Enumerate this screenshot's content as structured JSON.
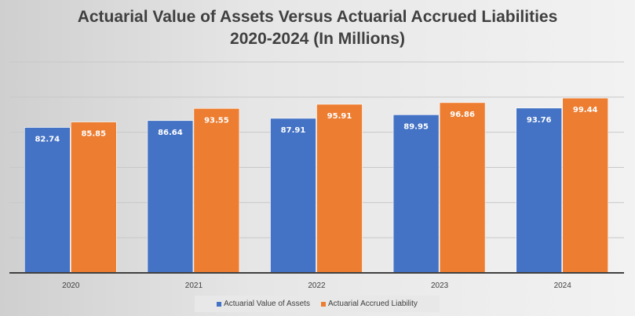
{
  "chart_data": {
    "type": "bar",
    "title": "Actuarial Value of Assets Versus Actuarial Accrued Liabilities",
    "subtitle": "2020-2024 (In Millions)",
    "xlabel": "",
    "ylabel": "",
    "categories": [
      "2020",
      "2021",
      "2022",
      "2023",
      "2024"
    ],
    "series": [
      {
        "name": "Actuarial Value of Assets",
        "color": "#4472c4",
        "values": [
          82.74,
          86.64,
          87.91,
          89.95,
          93.76
        ]
      },
      {
        "name": "Actuarial Accrued Liability",
        "color": "#ed7d31",
        "values": [
          85.85,
          93.55,
          95.91,
          96.86,
          99.44
        ]
      }
    ],
    "ylim": [
      0,
      120
    ],
    "ytick_step": 20,
    "y_tick_labels_shown": false,
    "grid": true,
    "legend": "bottom",
    "data_labels": "inside-top"
  }
}
